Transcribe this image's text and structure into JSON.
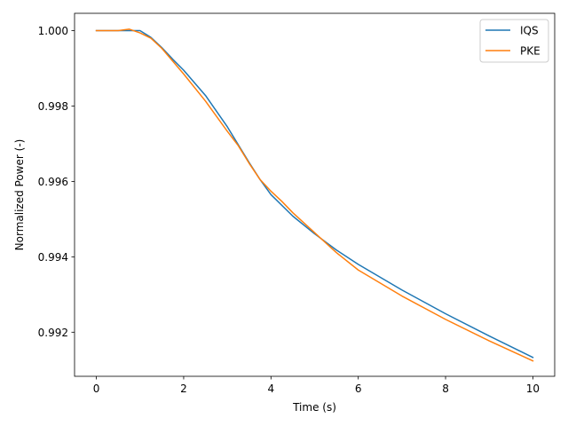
{
  "chart_data": {
    "type": "line",
    "title": "",
    "xlabel": "Time (s)",
    "ylabel": "Normalized Power (-)",
    "xlim": [
      -0.5,
      10.5
    ],
    "ylim": [
      0.99083,
      1.00046
    ],
    "xticks": [
      0,
      2,
      4,
      6,
      8,
      10
    ],
    "xtick_labels": [
      "0",
      "2",
      "4",
      "6",
      "8",
      "10"
    ],
    "yticks": [
      0.992,
      0.994,
      0.996,
      0.998,
      1.0
    ],
    "ytick_labels": [
      "0.992",
      "0.994",
      "0.996",
      "0.998",
      "1.000"
    ],
    "grid": false,
    "legend_position": "top-right",
    "series": [
      {
        "name": "IQS",
        "color": "#1f77b4",
        "x": [
          0,
          0.25,
          0.5,
          0.75,
          1.0,
          1.25,
          1.5,
          1.75,
          2.0,
          2.5,
          3.0,
          3.5,
          3.75,
          4.0,
          4.5,
          5.0,
          5.5,
          6.0,
          7.0,
          8.0,
          9.0,
          10.0
        ],
        "y": [
          1.0,
          1.0,
          1.0,
          1.0,
          1.0,
          0.99982,
          0.99955,
          0.99924,
          0.99895,
          0.99828,
          0.99745,
          0.9965,
          0.99605,
          0.99565,
          0.99508,
          0.99461,
          0.99418,
          0.9938,
          0.99312,
          0.99249,
          0.9919,
          0.99133
        ]
      },
      {
        "name": "PKE",
        "color": "#ff7f0e",
        "x": [
          0,
          0.25,
          0.5,
          0.75,
          1.0,
          1.25,
          1.5,
          2.0,
          2.5,
          3.0,
          3.25,
          3.5,
          3.75,
          4.0,
          4.25,
          4.5,
          5.0,
          5.5,
          6.0,
          7.0,
          8.0,
          9.0,
          10.0
        ],
        "y": [
          1.0,
          1.0,
          1.0,
          1.00004,
          0.99994,
          0.9998,
          0.99953,
          0.99885,
          0.99813,
          0.99733,
          0.99695,
          0.99648,
          0.99605,
          0.99574,
          0.99547,
          0.99517,
          0.99464,
          0.99411,
          0.99365,
          0.99296,
          0.99234,
          0.99177,
          0.99124
        ]
      }
    ]
  }
}
